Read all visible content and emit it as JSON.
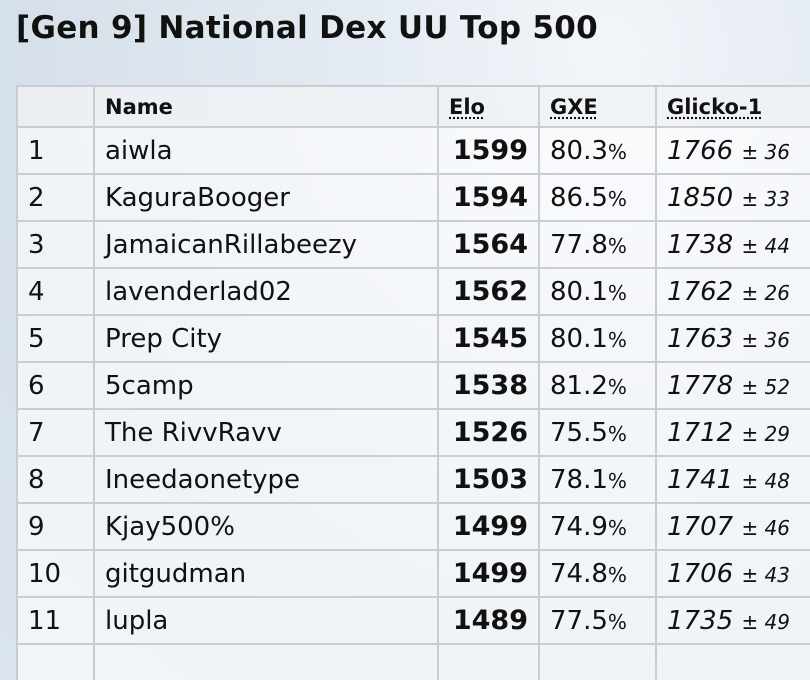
{
  "header": {
    "title": "[Gen 9] National Dex UU Top 500"
  },
  "table": {
    "columns": [
      "Name",
      "Elo",
      "GXE",
      "Glicko-1"
    ],
    "rows": [
      {
        "rank": 1,
        "name": "aiwla",
        "elo": 1599,
        "gxe": 80.3,
        "gxe_unit": "%",
        "glicko": 1766,
        "glicko_dev": "± 36"
      },
      {
        "rank": 2,
        "name": "KaguraBooger",
        "elo": 1594,
        "gxe": 86.5,
        "gxe_unit": "%",
        "glicko": 1850,
        "glicko_dev": "± 33"
      },
      {
        "rank": 3,
        "name": "JamaicanRillabeezy",
        "elo": 1564,
        "gxe": 77.8,
        "gxe_unit": "%",
        "glicko": 1738,
        "glicko_dev": "± 44"
      },
      {
        "rank": 4,
        "name": "lavenderlad02",
        "elo": 1562,
        "gxe": 80.1,
        "gxe_unit": "%",
        "glicko": 1762,
        "glicko_dev": "± 26"
      },
      {
        "rank": 5,
        "name": "Prep City",
        "elo": 1545,
        "gxe": 80.1,
        "gxe_unit": "%",
        "glicko": 1763,
        "glicko_dev": "± 36"
      },
      {
        "rank": 6,
        "name": "5camp",
        "elo": 1538,
        "gxe": 81.2,
        "gxe_unit": "%",
        "glicko": 1778,
        "glicko_dev": "± 52"
      },
      {
        "rank": 7,
        "name": "The RivvRavv",
        "elo": 1526,
        "gxe": 75.5,
        "gxe_unit": "%",
        "glicko": 1712,
        "glicko_dev": "± 29"
      },
      {
        "rank": 8,
        "name": "Ineedaonetype",
        "elo": 1503,
        "gxe": 78.1,
        "gxe_unit": "%",
        "glicko": 1741,
        "glicko_dev": "± 48"
      },
      {
        "rank": 9,
        "name": "Kjay500%",
        "elo": 1499,
        "gxe": 74.9,
        "gxe_unit": "%",
        "glicko": 1707,
        "glicko_dev": "± 46"
      },
      {
        "rank": 10,
        "name": "gitgudman",
        "elo": 1499,
        "gxe": 74.8,
        "gxe_unit": "%",
        "glicko": 1706,
        "glicko_dev": "± 43"
      },
      {
        "rank": 11,
        "name": "lupla",
        "elo": 1489,
        "gxe": 77.5,
        "gxe_unit": "%",
        "glicko": 1735,
        "glicko_dev": "± 49"
      }
    ]
  }
}
